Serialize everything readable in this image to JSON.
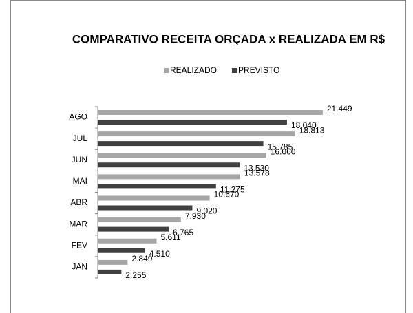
{
  "chart_data": {
    "type": "hbar",
    "title": "COMPARATIVO RECEITA ORÇADA x REALIZADA EM R$",
    "categories": [
      "JAN",
      "FEV",
      "MAR",
      "ABR",
      "MAI",
      "JUN",
      "JUL",
      "AGO"
    ],
    "series": [
      {
        "name": "REALIZADO",
        "color": "#a6a6a6",
        "values": [
          2849,
          5611,
          7930,
          10670,
          13578,
          16060,
          18813,
          21449
        ],
        "value_labels": [
          "2.849",
          "5.611",
          "7.930",
          "10.670",
          "13.578",
          "16.060",
          "18.813",
          "21.449"
        ]
      },
      {
        "name": "PREVISTO",
        "color": "#404040",
        "values": [
          2255,
          4510,
          6765,
          9020,
          11275,
          13530,
          15785,
          18040
        ],
        "value_labels": [
          "2.255",
          "4.510",
          "6.765",
          "9.020",
          "11.275",
          "13.530",
          "15.785",
          "18.040"
        ]
      }
    ],
    "xlim": [
      0,
      25000
    ]
  }
}
